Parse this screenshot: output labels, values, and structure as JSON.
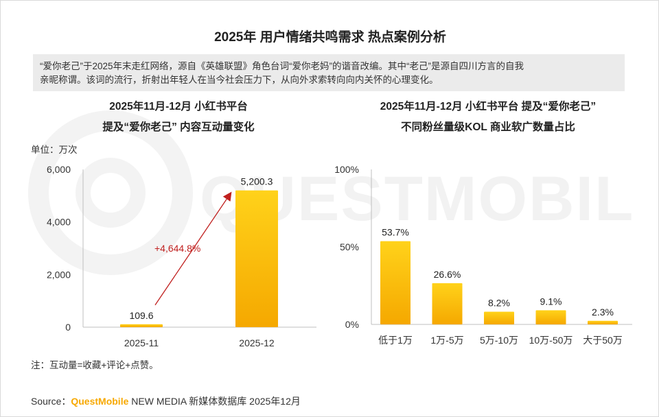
{
  "title": "2025年 用户情绪共鸣需求 热点案例分析",
  "note": {
    "line1": "“爱你老己”于2025年末走红网络，源自《英雄联盟》角色台词“爱你老妈”的谐音改编。其中“老己”是源自四川方言的自我",
    "line2": "亲昵称谓。该词的流行，折射出年轻人在当今社会压力下，从向外求索转向向内关怀的心理变化。"
  },
  "watermark": "QUESTMOBILE",
  "left_chart": {
    "title_line1": "2025年11月-12月 小红书平台",
    "title_line2": "提及“爱你老己” 内容互动量变化",
    "unit": "单位：万次",
    "growth_label": "+4,644.8%",
    "footnote": "注：互动量=收藏+评论+点赞。"
  },
  "right_chart": {
    "title_line1": "2025年11月-12月 小红书平台 提及“爱你老己”",
    "title_line2": "不同粉丝量级KOL 商业软广数量占比"
  },
  "source": {
    "prefix": "Source：",
    "brand": "QuestMobile",
    "suffix": " NEW MEDIA 新媒体数据库 2025年12月"
  },
  "colors": {
    "bar_top": "#ffd21a",
    "bar_bottom": "#f5a800",
    "arrow": "#c0201f",
    "brand": "#f7a800"
  },
  "chart_data": [
    {
      "type": "bar",
      "title": "2025年11月-12月 小红书平台 提及“爱你老己” 内容互动量变化",
      "ylabel": "单位：万次",
      "categories": [
        "2025-11",
        "2025-12"
      ],
      "values": [
        109.6,
        5200.3
      ],
      "value_labels": [
        "109.6",
        "5,200.3"
      ],
      "ylim": [
        0,
        6000
      ],
      "yticks": [
        0,
        2000,
        4000,
        6000
      ],
      "ytick_labels": [
        "0",
        "2,000",
        "4,000",
        "6,000"
      ],
      "annotation": "+4,644.8%"
    },
    {
      "type": "bar",
      "title": "2025年11月-12月 小红书平台 提及“爱你老己” 不同粉丝量级KOL 商业软广数量占比",
      "categories": [
        "低于1万",
        "1万-5万",
        "5万-10万",
        "10万-50万",
        "大于50万"
      ],
      "values": [
        53.7,
        26.6,
        8.2,
        9.1,
        2.3
      ],
      "value_labels": [
        "53.7%",
        "26.6%",
        "8.2%",
        "9.1%",
        "2.3%"
      ],
      "ylim": [
        0,
        100
      ],
      "yticks": [
        0,
        50,
        100
      ],
      "ytick_labels": [
        "0%",
        "50%",
        "100%"
      ]
    }
  ]
}
